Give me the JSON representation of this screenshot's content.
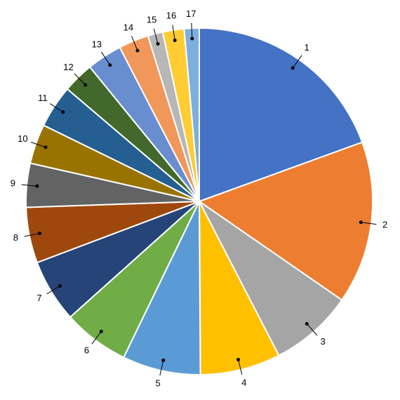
{
  "chart_data": {
    "type": "pie",
    "categories": [
      "1",
      "2",
      "3",
      "4",
      "5",
      "6",
      "7",
      "8",
      "9",
      "10",
      "11",
      "12",
      "13",
      "14",
      "15",
      "16",
      "17"
    ],
    "values": [
      19.5,
      15.2,
      7.8,
      7.5,
      7.3,
      6.2,
      5.9,
      5.2,
      4.1,
      3.7,
      4.0,
      2.9,
      3.3,
      2.8,
      1.4,
      2.0,
      1.4
    ],
    "colors": [
      "#4472c4",
      "#ed7d31",
      "#a5a5a5",
      "#ffc000",
      "#5b9bd5",
      "#70ad47",
      "#264478",
      "#9e480e",
      "#636363",
      "#997300",
      "#255e91",
      "#43682b",
      "#698ed0",
      "#f1975a",
      "#b7b7b7",
      "#ffcd33",
      "#7cafdd"
    ]
  }
}
